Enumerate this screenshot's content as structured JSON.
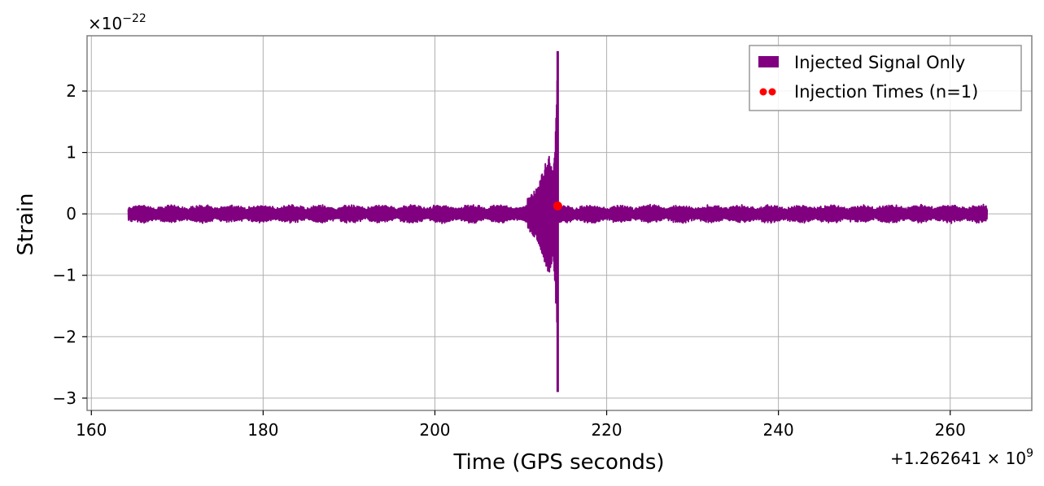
{
  "chart_data": {
    "type": "line",
    "xlabel": "Time (GPS seconds)",
    "ylabel": "Strain",
    "x_offset_label": "+1.262641 × 10",
    "x_offset_exponent": "9",
    "y_scale_label": "×10",
    "y_scale_exponent": "−22",
    "xlim": [
      159.5,
      269.5
    ],
    "ylim": [
      -3.2,
      2.9
    ],
    "x_ticks": [
      160,
      180,
      200,
      220,
      240,
      260
    ],
    "x_tick_labels": [
      "160",
      "180",
      "200",
      "220",
      "240",
      "260"
    ],
    "y_ticks": [
      2,
      1,
      0,
      -1,
      -2,
      -3
    ],
    "y_tick_labels": [
      "2",
      "1",
      "0",
      "−1",
      "−2",
      "−3"
    ],
    "grid": true,
    "legend_position": "top-right",
    "series": [
      {
        "name": "Injected Signal Only",
        "kind": "line",
        "color": "#800080",
        "x_range": [
          164.3,
          264.3
        ],
        "baseline_envelope": 0.12,
        "burst_time": 214.3,
        "burst_envelope": [
          {
            "x": 210.8,
            "y": 0.25
          },
          {
            "x": 212.0,
            "y": 0.45
          },
          {
            "x": 212.8,
            "y": 0.8
          },
          {
            "x": 213.3,
            "y": 1.0
          },
          {
            "x": 213.8,
            "y": 0.7
          },
          {
            "x": 214.1,
            "y": 1.5
          },
          {
            "x": 214.3,
            "y": 2.65
          },
          {
            "x": 214.3,
            "y": -2.9
          }
        ]
      },
      {
        "name": "Injection Times (n=1)",
        "kind": "scatter",
        "color": "#ff0000",
        "points": [
          {
            "x": 214.3,
            "y": 0.13
          }
        ]
      }
    ]
  }
}
